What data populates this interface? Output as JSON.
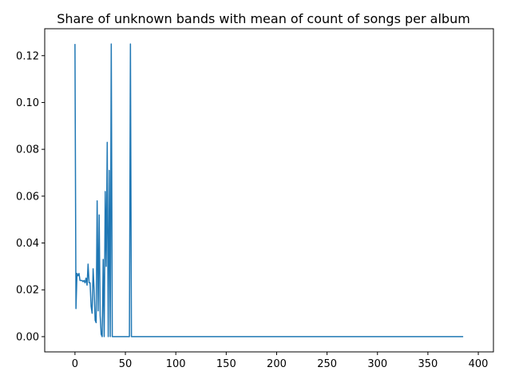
{
  "chart_data": {
    "type": "line",
    "title": "Share of unknown bands with mean of count of songs per album",
    "xlabel": "",
    "ylabel": "",
    "xlim": [
      -30,
      415
    ],
    "ylim": [
      -0.0065,
      0.1315
    ],
    "x_ticks": [
      0,
      50,
      100,
      150,
      200,
      250,
      300,
      350,
      400
    ],
    "y_ticks": [
      0.0,
      0.02,
      0.04,
      0.06,
      0.08,
      0.1,
      0.12
    ],
    "y_tick_labels": [
      "0.00",
      "0.02",
      "0.04",
      "0.06",
      "0.08",
      "0.10",
      "0.12"
    ],
    "grid": false,
    "legend": "none",
    "series": [
      {
        "color": "#1f77b4",
        "x": [
          0,
          1,
          2,
          3,
          4,
          5,
          6,
          7,
          8,
          9,
          10,
          11,
          12,
          13,
          14,
          15,
          16,
          17,
          18,
          19,
          20,
          21,
          22,
          23,
          24,
          25,
          26,
          27,
          28,
          29,
          30,
          31,
          32,
          33,
          34,
          35,
          36,
          37,
          38,
          39,
          40,
          45,
          50,
          54,
          55,
          56,
          60,
          100,
          150,
          200,
          250,
          300,
          350,
          385
        ],
        "y": [
          0.125,
          0.012,
          0.027,
          0.026,
          0.027,
          0.024,
          0.024,
          0.024,
          0.0235,
          0.024,
          0.023,
          0.025,
          0.022,
          0.031,
          0.023,
          0.023,
          0.013,
          0.01,
          0.029,
          0.02,
          0.007,
          0.006,
          0.058,
          0.011,
          0.052,
          0.009,
          0.001,
          0.0,
          0.033,
          0.0,
          0.062,
          0.03,
          0.083,
          0.0,
          0.071,
          0.0,
          0.125,
          0.0,
          0.0,
          0.0,
          0.0,
          0.0,
          0.0,
          0.0,
          0.125,
          0.0,
          0.0,
          0.0,
          0.0,
          0.0,
          0.0,
          0.0,
          0.0,
          0.0
        ]
      }
    ]
  }
}
